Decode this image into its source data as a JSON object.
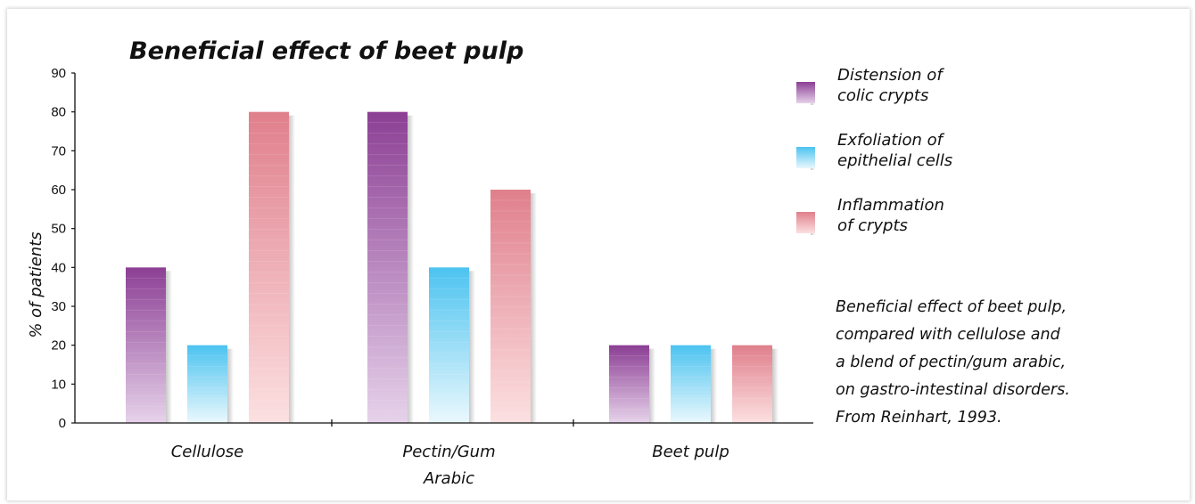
{
  "chart_data": {
    "type": "bar",
    "title": "Beneficial effect of beet pulp",
    "ylabel": "% of patients",
    "xlabel": "",
    "ylim": [
      0,
      90
    ],
    "yticks": [
      0,
      10,
      20,
      30,
      40,
      50,
      60,
      70,
      80,
      90
    ],
    "categories": [
      [
        "Cellulose"
      ],
      [
        "Pectin/Gum",
        "Arabic"
      ],
      [
        "Beet pulp"
      ]
    ],
    "series": [
      {
        "name": [
          "Distension of",
          "colic crypts"
        ],
        "values": [
          40,
          80,
          20
        ],
        "color_top": "#8c3f94",
        "color_bottom": "#e6d2ea"
      },
      {
        "name": [
          "Exfoliation of",
          "epithelial cells"
        ],
        "values": [
          20,
          40,
          20
        ],
        "color_top": "#4cc3f0",
        "color_bottom": "#eaf8fd"
      },
      {
        "name": [
          "Inflammation",
          "of crypts"
        ],
        "values": [
          80,
          60,
          20
        ],
        "color_top": "#e07f8c",
        "color_bottom": "#fce0e1"
      }
    ],
    "legend_position": "right",
    "annotation": [
      "Beneficial effect of beet pulp,",
      "compared with cellulose and",
      "a blend of pectin/gum arabic,",
      "on gastro-intestinal disorders.",
      "From Reinhart, 1993."
    ]
  }
}
